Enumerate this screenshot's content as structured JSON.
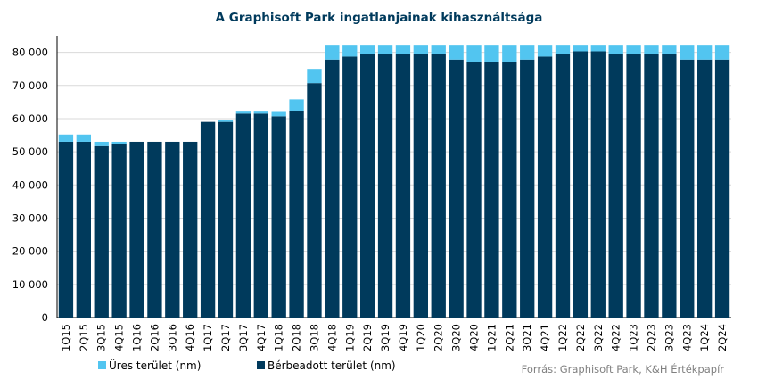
{
  "chart_data": {
    "type": "bar",
    "stacked": true,
    "title": "A Graphisoft Park ingatlanjainak kihasználtsága",
    "categories": [
      "1Q15",
      "2Q15",
      "3Q15",
      "4Q15",
      "1Q16",
      "2Q16",
      "3Q16",
      "4Q16",
      "1Q17",
      "2Q17",
      "3Q17",
      "4Q17",
      "1Q18",
      "2Q18",
      "3Q18",
      "4Q18",
      "1Q19",
      "2Q19",
      "3Q19",
      "4Q19",
      "1Q20",
      "2Q20",
      "3Q20",
      "4Q20",
      "1Q21",
      "2Q21",
      "3Q21",
      "4Q21",
      "1Q22",
      "2Q22",
      "3Q22",
      "4Q22",
      "1Q23",
      "2Q23",
      "3Q23",
      "4Q23",
      "1Q24",
      "2Q24"
    ],
    "series": [
      {
        "name": "Bérbeadott terület (nm)",
        "color": "#003a5c",
        "values": [
          53000,
          53000,
          51700,
          52200,
          53000,
          53000,
          53000,
          53000,
          59000,
          59000,
          61500,
          61500,
          60700,
          62300,
          70700,
          77800,
          78700,
          79500,
          79500,
          79500,
          79500,
          79500,
          77800,
          77000,
          77000,
          77000,
          77800,
          78700,
          79500,
          80300,
          80300,
          79500,
          79500,
          79500,
          79500,
          77800,
          77800,
          77800
        ]
      },
      {
        "name": "Üres terület (nm)",
        "color": "#52c5f0",
        "values": [
          2200,
          2200,
          1300,
          800,
          0,
          0,
          0,
          0,
          0,
          600,
          600,
          600,
          1300,
          3500,
          4300,
          4200,
          3300,
          2500,
          2500,
          2500,
          2500,
          2500,
          4200,
          5000,
          5000,
          5000,
          4200,
          3300,
          2500,
          1700,
          1700,
          2500,
          2500,
          2500,
          2500,
          4200,
          4200,
          4200
        ]
      }
    ],
    "legend_order": [
      1,
      0
    ],
    "ylim": [
      0,
      85000
    ],
    "yticks": [
      0,
      10000,
      20000,
      30000,
      40000,
      50000,
      60000,
      70000,
      80000
    ],
    "ytick_labels": [
      "0",
      "10 000",
      "20 000",
      "30 000",
      "40 000",
      "50 000",
      "60 000",
      "70 000",
      "80 000"
    ],
    "grid": true,
    "legend_position": "bottom-left",
    "source": "Forrás: Graphisoft Park, K&H Értékpapír"
  },
  "colors": {
    "title": "#003a5c",
    "axis_text": "#000000",
    "grid": "#d9d9d9",
    "source_text": "#808080"
  }
}
